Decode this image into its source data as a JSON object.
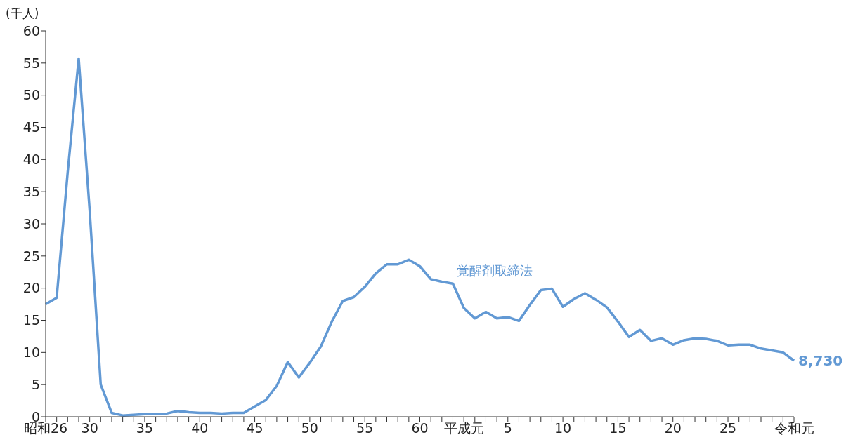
{
  "chart_data": {
    "type": "line",
    "ylabel": "(千人)",
    "categories": [
      "昭和26",
      null,
      null,
      null,
      "30",
      null,
      null,
      null,
      null,
      "35",
      null,
      null,
      null,
      null,
      "40",
      null,
      null,
      null,
      null,
      "45",
      null,
      null,
      null,
      null,
      "50",
      null,
      null,
      null,
      null,
      "55",
      null,
      null,
      null,
      null,
      "60",
      null,
      null,
      null,
      "平成元",
      null,
      null,
      null,
      "5",
      null,
      null,
      null,
      null,
      "10",
      null,
      null,
      null,
      null,
      "15",
      null,
      null,
      null,
      null,
      "20",
      null,
      null,
      null,
      null,
      "25",
      null,
      null,
      null,
      null,
      null,
      "令和元"
    ],
    "series": [
      {
        "name": "覚醒剤取締法",
        "color": "#6299d4",
        "values": [
          17.5,
          18.5,
          38,
          55.7,
          32,
          5.0,
          0.6,
          0.2,
          0.3,
          0.4,
          0.4,
          0.5,
          0.9,
          0.7,
          0.6,
          0.6,
          0.5,
          0.6,
          0.6,
          1.6,
          2.6,
          4.8,
          8.5,
          6.1,
          8.4,
          10.9,
          14.8,
          18.0,
          18.6,
          20.2,
          22.3,
          23.7,
          23.7,
          24.4,
          23.4,
          21.4,
          21.0,
          20.7,
          16.9,
          15.3,
          16.3,
          15.3,
          15.5,
          14.9,
          17.4,
          19.7,
          19.9,
          17.1,
          18.3,
          19.2,
          18.2,
          17.0,
          14.8,
          12.4,
          13.5,
          11.8,
          12.2,
          11.2,
          11.9,
          12.2,
          12.1,
          11.8,
          11.1,
          11.2,
          11.2,
          10.6,
          10.3,
          10.0,
          8.73
        ],
        "value_labels": [
          null,
          null,
          null,
          null,
          null,
          null,
          null,
          null,
          null,
          null,
          null,
          null,
          null,
          null,
          null,
          null,
          null,
          null,
          null,
          null,
          null,
          null,
          null,
          null,
          null,
          null,
          null,
          null,
          null,
          null,
          null,
          null,
          null,
          null,
          null,
          null,
          null,
          null,
          null,
          null,
          null,
          null,
          null,
          null,
          null,
          null,
          null,
          null,
          null,
          null,
          null,
          null,
          null,
          null,
          null,
          null,
          null,
          null,
          null,
          null,
          null,
          null,
          null,
          null,
          null,
          null,
          null,
          null,
          null
        ]
      }
    ],
    "annotations": [
      {
        "text": "8,730",
        "x": "令和元",
        "y": 8.73
      }
    ],
    "ylim": [
      0,
      60
    ],
    "yticks": [
      0,
      5,
      10,
      15,
      20,
      25,
      30,
      35,
      40,
      45,
      50,
      55,
      60
    ],
    "grid": false,
    "legend": false,
    "marker": "none",
    "line_style": "solid"
  }
}
